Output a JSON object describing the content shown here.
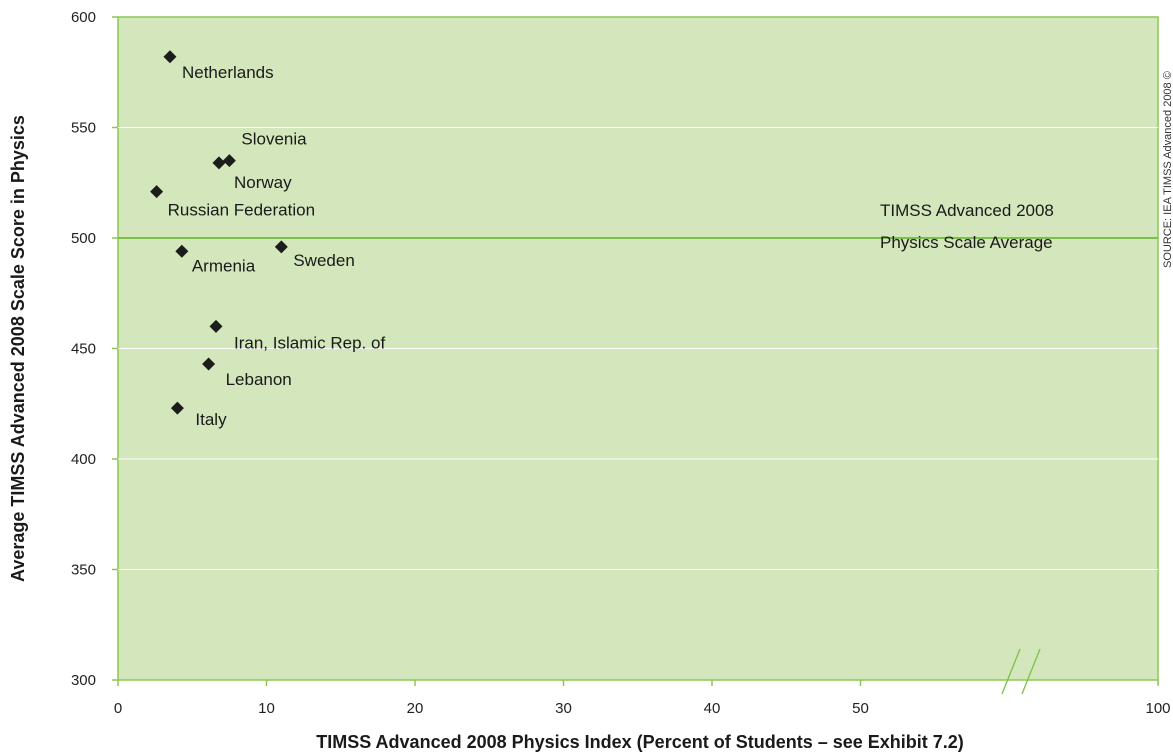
{
  "chart_data": {
    "type": "scatter",
    "xlabel": "TIMSS Advanced 2008 Physics Index (Percent of Students – see Exhibit 7.2)",
    "ylabel": "Average TIMSS Advanced 2008 Scale Score in Physics",
    "xlim": [
      0,
      100
    ],
    "ylim": [
      300,
      600
    ],
    "x_ticks": [
      "0",
      "10",
      "20",
      "30",
      "40",
      "50",
      "100"
    ],
    "y_ticks": [
      "600",
      "550",
      "500",
      "450",
      "400",
      "350",
      "300"
    ],
    "x_axis_break": "between 50 and 100",
    "grid": "horizontal",
    "reference_line": {
      "y": 500,
      "label_line1": "TIMSS Advanced 2008",
      "label_line2": "Physics Scale Average"
    },
    "points": [
      {
        "label": "Netherlands",
        "x": 3.5,
        "y": 582
      },
      {
        "label": "Slovenia",
        "x": 7.5,
        "y": 535
      },
      {
        "label": "Norway",
        "x": 6.8,
        "y": 534
      },
      {
        "label": "Russian Federation",
        "x": 2.6,
        "y": 521
      },
      {
        "label": "Armenia",
        "x": 4.3,
        "y": 494
      },
      {
        "label": "Sweden",
        "x": 11.0,
        "y": 496
      },
      {
        "label": "Iran, Islamic Rep. of",
        "x": 6.6,
        "y": 460
      },
      {
        "label": "Lebanon",
        "x": 6.1,
        "y": 443
      },
      {
        "label": "Italy",
        "x": 4.0,
        "y": 423
      }
    ],
    "colors": {
      "plot_background": "#d4e6bc",
      "plot_border": "#8cc850",
      "reference_line": "#7cc04a",
      "gridline": "#ffffff",
      "marker": "#1c1c1c"
    },
    "source_note": "SOURCE: IEA TIMSS Advanced 2008 ©"
  }
}
